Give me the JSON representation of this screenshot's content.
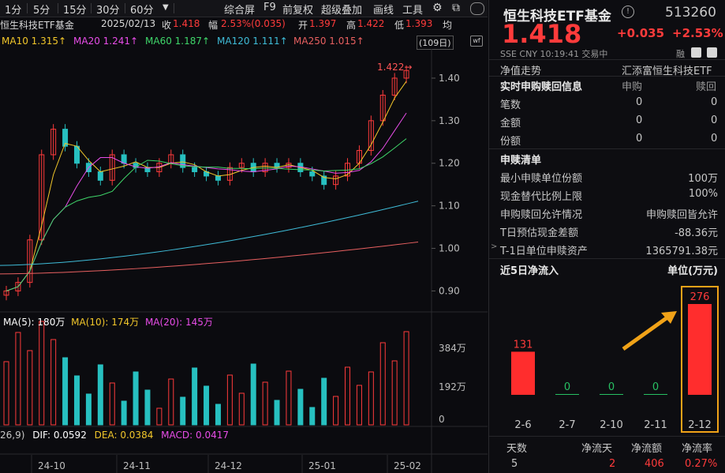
{
  "toolbar": {
    "periods": [
      "1分",
      "5分",
      "15分",
      "30分",
      "60分"
    ],
    "more_icon": "dropdown-arrow",
    "menu": [
      "综合屏",
      "F9",
      "前复权",
      "超级叠加",
      "画线",
      "工具"
    ],
    "icons": [
      "gear-icon",
      "copy-icon"
    ]
  },
  "info": {
    "name": "恒生科技ETF基金",
    "date": "2025/02/13",
    "close_label": "收",
    "close": "1.418",
    "change_label": "幅",
    "change": "2.53%(0.035)",
    "open_label": "开",
    "open": "1.397",
    "high_label": "高",
    "high": "1.422",
    "low_label": "低",
    "low": "1.393",
    "avg_label": "均"
  },
  "ma": {
    "ma10": "MA10 1.315↑",
    "ma20": "MA20 1.241↑",
    "ma60": "MA60 1.187↑",
    "ma120": "MA120 1.111↑",
    "ma250": "MA250 1.015↑",
    "days": "(109日)",
    "colors": {
      "ma5": "#ffffff",
      "ma10": "#f2c72a",
      "ma20": "#e84de8",
      "ma60": "#3fd66a",
      "ma120": "#3fbcd8",
      "ma250": "#e86060"
    }
  },
  "price_axis": [
    "1.40",
    "1.30",
    "1.20",
    "1.10",
    "1.00",
    "0.90"
  ],
  "max_label": "1.422→",
  "vol": {
    "ma5": "MA(5): 180万",
    "ma10": "MA(10): 174万",
    "ma20": "MA(20): 145万",
    "axis": [
      "384万",
      "192万",
      "0"
    ]
  },
  "macd": {
    "params": "26,9)",
    "dif": "DIF: 0.0592",
    "dea": "DEA: 0.0384",
    "macd": "MACD: 0.0417"
  },
  "months": [
    "24-10",
    "24-11",
    "24-12",
    "25-01",
    "25-02"
  ],
  "chart_data": [
    {
      "type": "line",
      "title": "",
      "description_series": [
        {
          "name": "close",
          "values": [
            0.9,
            0.92,
            1.02,
            1.22,
            1.28,
            1.24,
            1.2,
            1.18,
            1.16,
            1.22,
            1.2,
            1.19,
            1.18,
            1.2,
            1.22,
            1.19,
            1.18,
            1.17,
            1.16,
            1.19,
            1.2,
            1.18,
            1.2,
            1.19,
            1.2,
            1.18,
            1.17,
            1.15,
            1.17,
            1.2,
            1.23,
            1.3,
            1.36,
            1.4,
            1.418
          ]
        }
      ],
      "ylim": [
        0.86,
        1.45
      ]
    },
    {
      "type": "bar",
      "title": "",
      "categories": [
        "2-6",
        "2-7",
        "2-10",
        "2-11",
        "2-12"
      ],
      "values": [
        131,
        0,
        0,
        0,
        276
      ]
    }
  ],
  "panel": {
    "title": "恒生科技ETF基金",
    "code": "513260",
    "price": "1.418",
    "chg": "+0.035",
    "pct": "+2.53%",
    "meta": "SSE  CNY  10:19:41  交易中",
    "tag": "融",
    "netval_label": "净值走势",
    "fund_company": "汇添富恒生科技ETF",
    "realtime": {
      "title": "实时申购赎回信息",
      "buy": "申购",
      "sell": "赎回"
    },
    "rt_rows": [
      {
        "label": "笔数",
        "buy": "0",
        "sell": "0"
      },
      {
        "label": "金额",
        "buy": "0",
        "sell": "0"
      },
      {
        "label": "份额",
        "buy": "0",
        "sell": "0"
      }
    ],
    "list_title": "申赎清单",
    "list_rows": [
      {
        "label": "最小申赎单位份额",
        "value": "100万"
      },
      {
        "label": "现金替代比例上限",
        "value": "100%"
      },
      {
        "label": "申购赎回允许情况",
        "value": "申购赎回皆允许"
      },
      {
        "label": "T日预估现金差额",
        "value": "-88.36元"
      },
      {
        "label": "T-1日单位申赎资产",
        "value": "1365791.38元"
      }
    ],
    "flow_title": "近5日净流入",
    "flow_unit": "单位(万元)",
    "footer": {
      "labels": [
        "天数",
        "净流天",
        "净流额",
        "净流率"
      ],
      "values": [
        "5",
        "2",
        "406",
        "0.27%"
      ]
    }
  }
}
